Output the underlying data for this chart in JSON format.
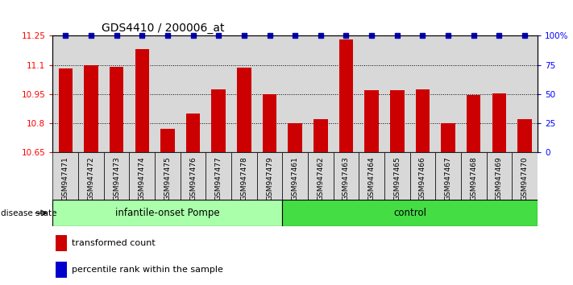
{
  "title": "GDS4410 / 200006_at",
  "samples": [
    "GSM947471",
    "GSM947472",
    "GSM947473",
    "GSM947474",
    "GSM947475",
    "GSM947476",
    "GSM947477",
    "GSM947478",
    "GSM947479",
    "GSM947461",
    "GSM947462",
    "GSM947463",
    "GSM947464",
    "GSM947465",
    "GSM947466",
    "GSM947467",
    "GSM947468",
    "GSM947469",
    "GSM947470"
  ],
  "bar_values": [
    11.08,
    11.1,
    11.09,
    11.18,
    10.77,
    10.85,
    10.975,
    11.085,
    10.95,
    10.8,
    10.82,
    11.23,
    10.97,
    10.97,
    10.975,
    10.8,
    10.945,
    10.955,
    10.82
  ],
  "percentile_values": [
    100,
    100,
    100,
    100,
    100,
    100,
    100,
    100,
    100,
    100,
    100,
    100,
    100,
    100,
    100,
    100,
    100,
    100,
    100
  ],
  "ylim_left": [
    10.65,
    11.25
  ],
  "ylim_right": [
    0,
    100
  ],
  "yticks_left": [
    10.65,
    10.8,
    10.95,
    11.1,
    11.25
  ],
  "yticks_right": [
    0,
    25,
    50,
    75,
    100
  ],
  "ytick_labels_right": [
    "0",
    "25",
    "50",
    "75",
    "100%"
  ],
  "bar_color": "#cc0000",
  "percentile_color": "#0000cc",
  "group1_label": "infantile-onset Pompe",
  "group2_label": "control",
  "group1_count": 9,
  "group2_count": 10,
  "group1_color": "#aaffaa",
  "group2_color": "#44dd44",
  "disease_state_label": "disease state",
  "legend_bar_label": "transformed count",
  "legend_pct_label": "percentile rank within the sample",
  "plot_bg_color": "#d8d8d8",
  "bar_width": 0.55,
  "fig_width": 7.11,
  "fig_height": 3.54
}
